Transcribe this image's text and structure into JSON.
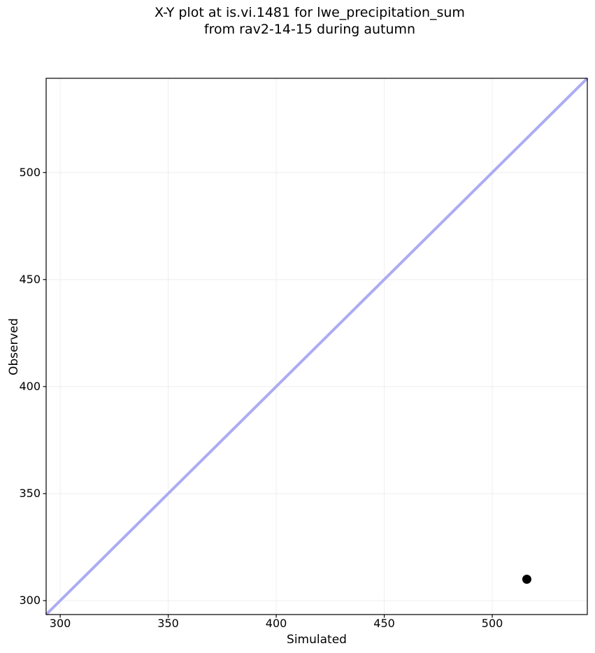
{
  "chart_data": {
    "type": "scatter",
    "title": "X-Y plot at is.vi.1481 for lwe_precipitation_sum\nfrom rav2-14-15 during autumn",
    "xlabel": "Simulated",
    "ylabel": "Observed",
    "xlim": [
      293.5,
      544
    ],
    "ylim": [
      293.5,
      544
    ],
    "xticks": [
      300,
      350,
      400,
      450,
      500
    ],
    "yticks": [
      300,
      350,
      400,
      450,
      500
    ],
    "grid": true,
    "series": [
      {
        "name": "observed-vs-simulated",
        "type": "scatter",
        "marker": "circle",
        "color": "#000000",
        "marker_diameter": 13,
        "points": [
          {
            "x": 516,
            "y": 310
          }
        ]
      }
    ],
    "reference_line": {
      "name": "identity-line",
      "x": [
        293.5,
        544
      ],
      "y": [
        293.5,
        544
      ],
      "color": "#acacf3",
      "width": 4
    },
    "colors": {
      "background": "#ffffff",
      "grid": "#eeeeee",
      "spine": "#000000",
      "text": "#000000"
    }
  }
}
